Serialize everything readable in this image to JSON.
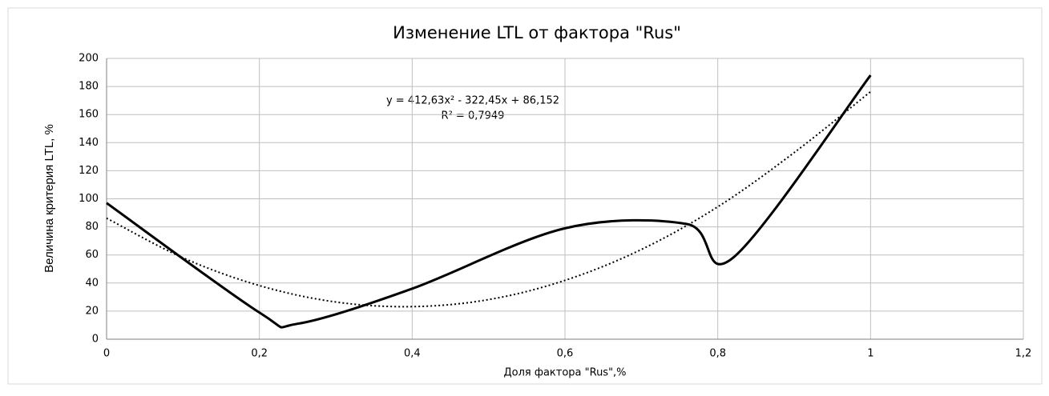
{
  "chart_data": {
    "type": "line",
    "title": "Изменение LTL от фактора \"Rus\"",
    "xlabel": "Доля фактора \"Rus\",%",
    "ylabel": "Величина критерия LTL, %",
    "annotations": [
      "y = 412,63x² - 322,45x + 86,152",
      "R² = 0,7949"
    ],
    "series": [
      {
        "color": "#000000",
        "style": "solid",
        "x": [
          0,
          0.2,
          0.25,
          0.4,
          0.6,
          0.76,
          0.82,
          1
        ],
        "values": [
          97,
          19,
          11,
          36,
          79,
          82,
          58,
          188
        ]
      },
      {
        "color": "#000000",
        "style": "dotted",
        "x": [
          0,
          0.1,
          0.2,
          0.3,
          0.4,
          0.5,
          0.6,
          0.7,
          0.8,
          0.9,
          1
        ],
        "values": [
          86.2,
          58,
          38.2,
          26.5,
          23.2,
          28.2,
          41.9,
          63.9,
          94.3,
          132.9,
          176.3
        ]
      }
    ],
    "xlim": [
      0,
      1.2
    ],
    "xticks": [
      0,
      {
        "value": 0.2,
        "label": "0,2"
      },
      {
        "value": 0.4,
        "label": "0,4"
      },
      {
        "value": 0.6,
        "label": "0,6"
      },
      {
        "value": 0.8,
        "label": "0,8"
      },
      1,
      {
        "value": 1.2,
        "label": "1,2"
      }
    ],
    "ylim": [
      0,
      200
    ],
    "yticks": [
      0,
      20,
      40,
      60,
      80,
      100,
      120,
      140,
      160,
      180,
      200
    ],
    "grid": true
  }
}
